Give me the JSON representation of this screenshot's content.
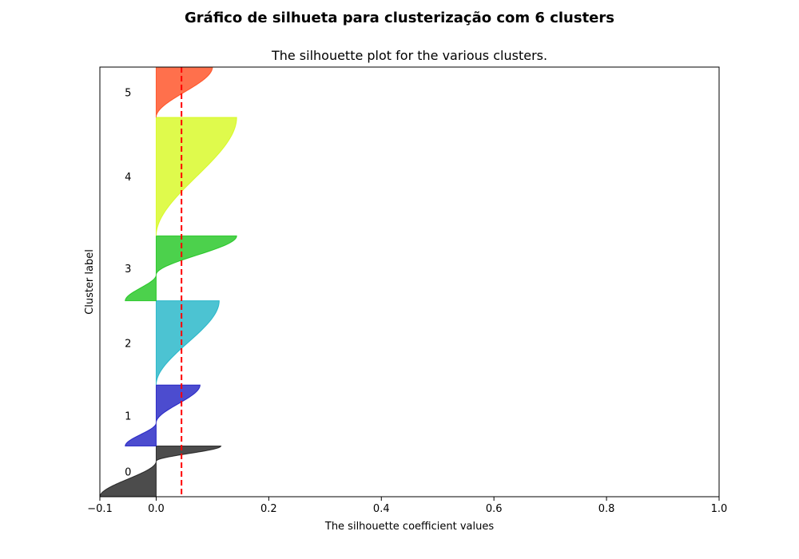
{
  "figure": {
    "suptitle": "Gráfico de silhueta para clusterização com 6 clusters"
  },
  "chart_data": {
    "type": "area",
    "title": "The silhouette plot for the various clusters.",
    "xlabel": "The silhouette coefficient values",
    "ylabel": "Cluster label",
    "xlim": [
      -0.1,
      1.0
    ],
    "xticks": [
      -0.1,
      0.0,
      0.2,
      0.4,
      0.6,
      0.8,
      1.0
    ],
    "xtick_labels": [
      "−0.1",
      "0.0",
      "0.2",
      "0.4",
      "0.6",
      "0.8",
      "1.0"
    ],
    "yticks": [],
    "average_silhouette": 0.045,
    "average_line_color": "#ff0000",
    "grid": false,
    "clusters": [
      {
        "label": "0",
        "color": "#000000",
        "min": -0.1,
        "max": 0.115,
        "start": 0.0,
        "end": 0.118,
        "zero_cross": 0.7
      },
      {
        "label": "1",
        "color": "#0000bb",
        "min": -0.055,
        "max": 0.078,
        "start": 0.118,
        "end": 0.26,
        "zero_cross": 0.38
      },
      {
        "label": "2",
        "color": "#00a9bf",
        "min": 0.0,
        "max": 0.112,
        "start": 0.26,
        "end": 0.456,
        "zero_cross": 0.0
      },
      {
        "label": "3",
        "color": "#00bd00",
        "min": -0.055,
        "max": 0.143,
        "start": 0.456,
        "end": 0.607,
        "zero_cross": 0.4
      },
      {
        "label": "4",
        "color": "#d1f800",
        "min": 0.0,
        "max": 0.143,
        "start": 0.607,
        "end": 0.883,
        "zero_cross": 0.0
      },
      {
        "label": "5",
        "color": "#ff3300",
        "min": -0.01,
        "max": 0.1,
        "start": 0.883,
        "end": 1.0,
        "zero_cross": 0.0
      }
    ]
  }
}
